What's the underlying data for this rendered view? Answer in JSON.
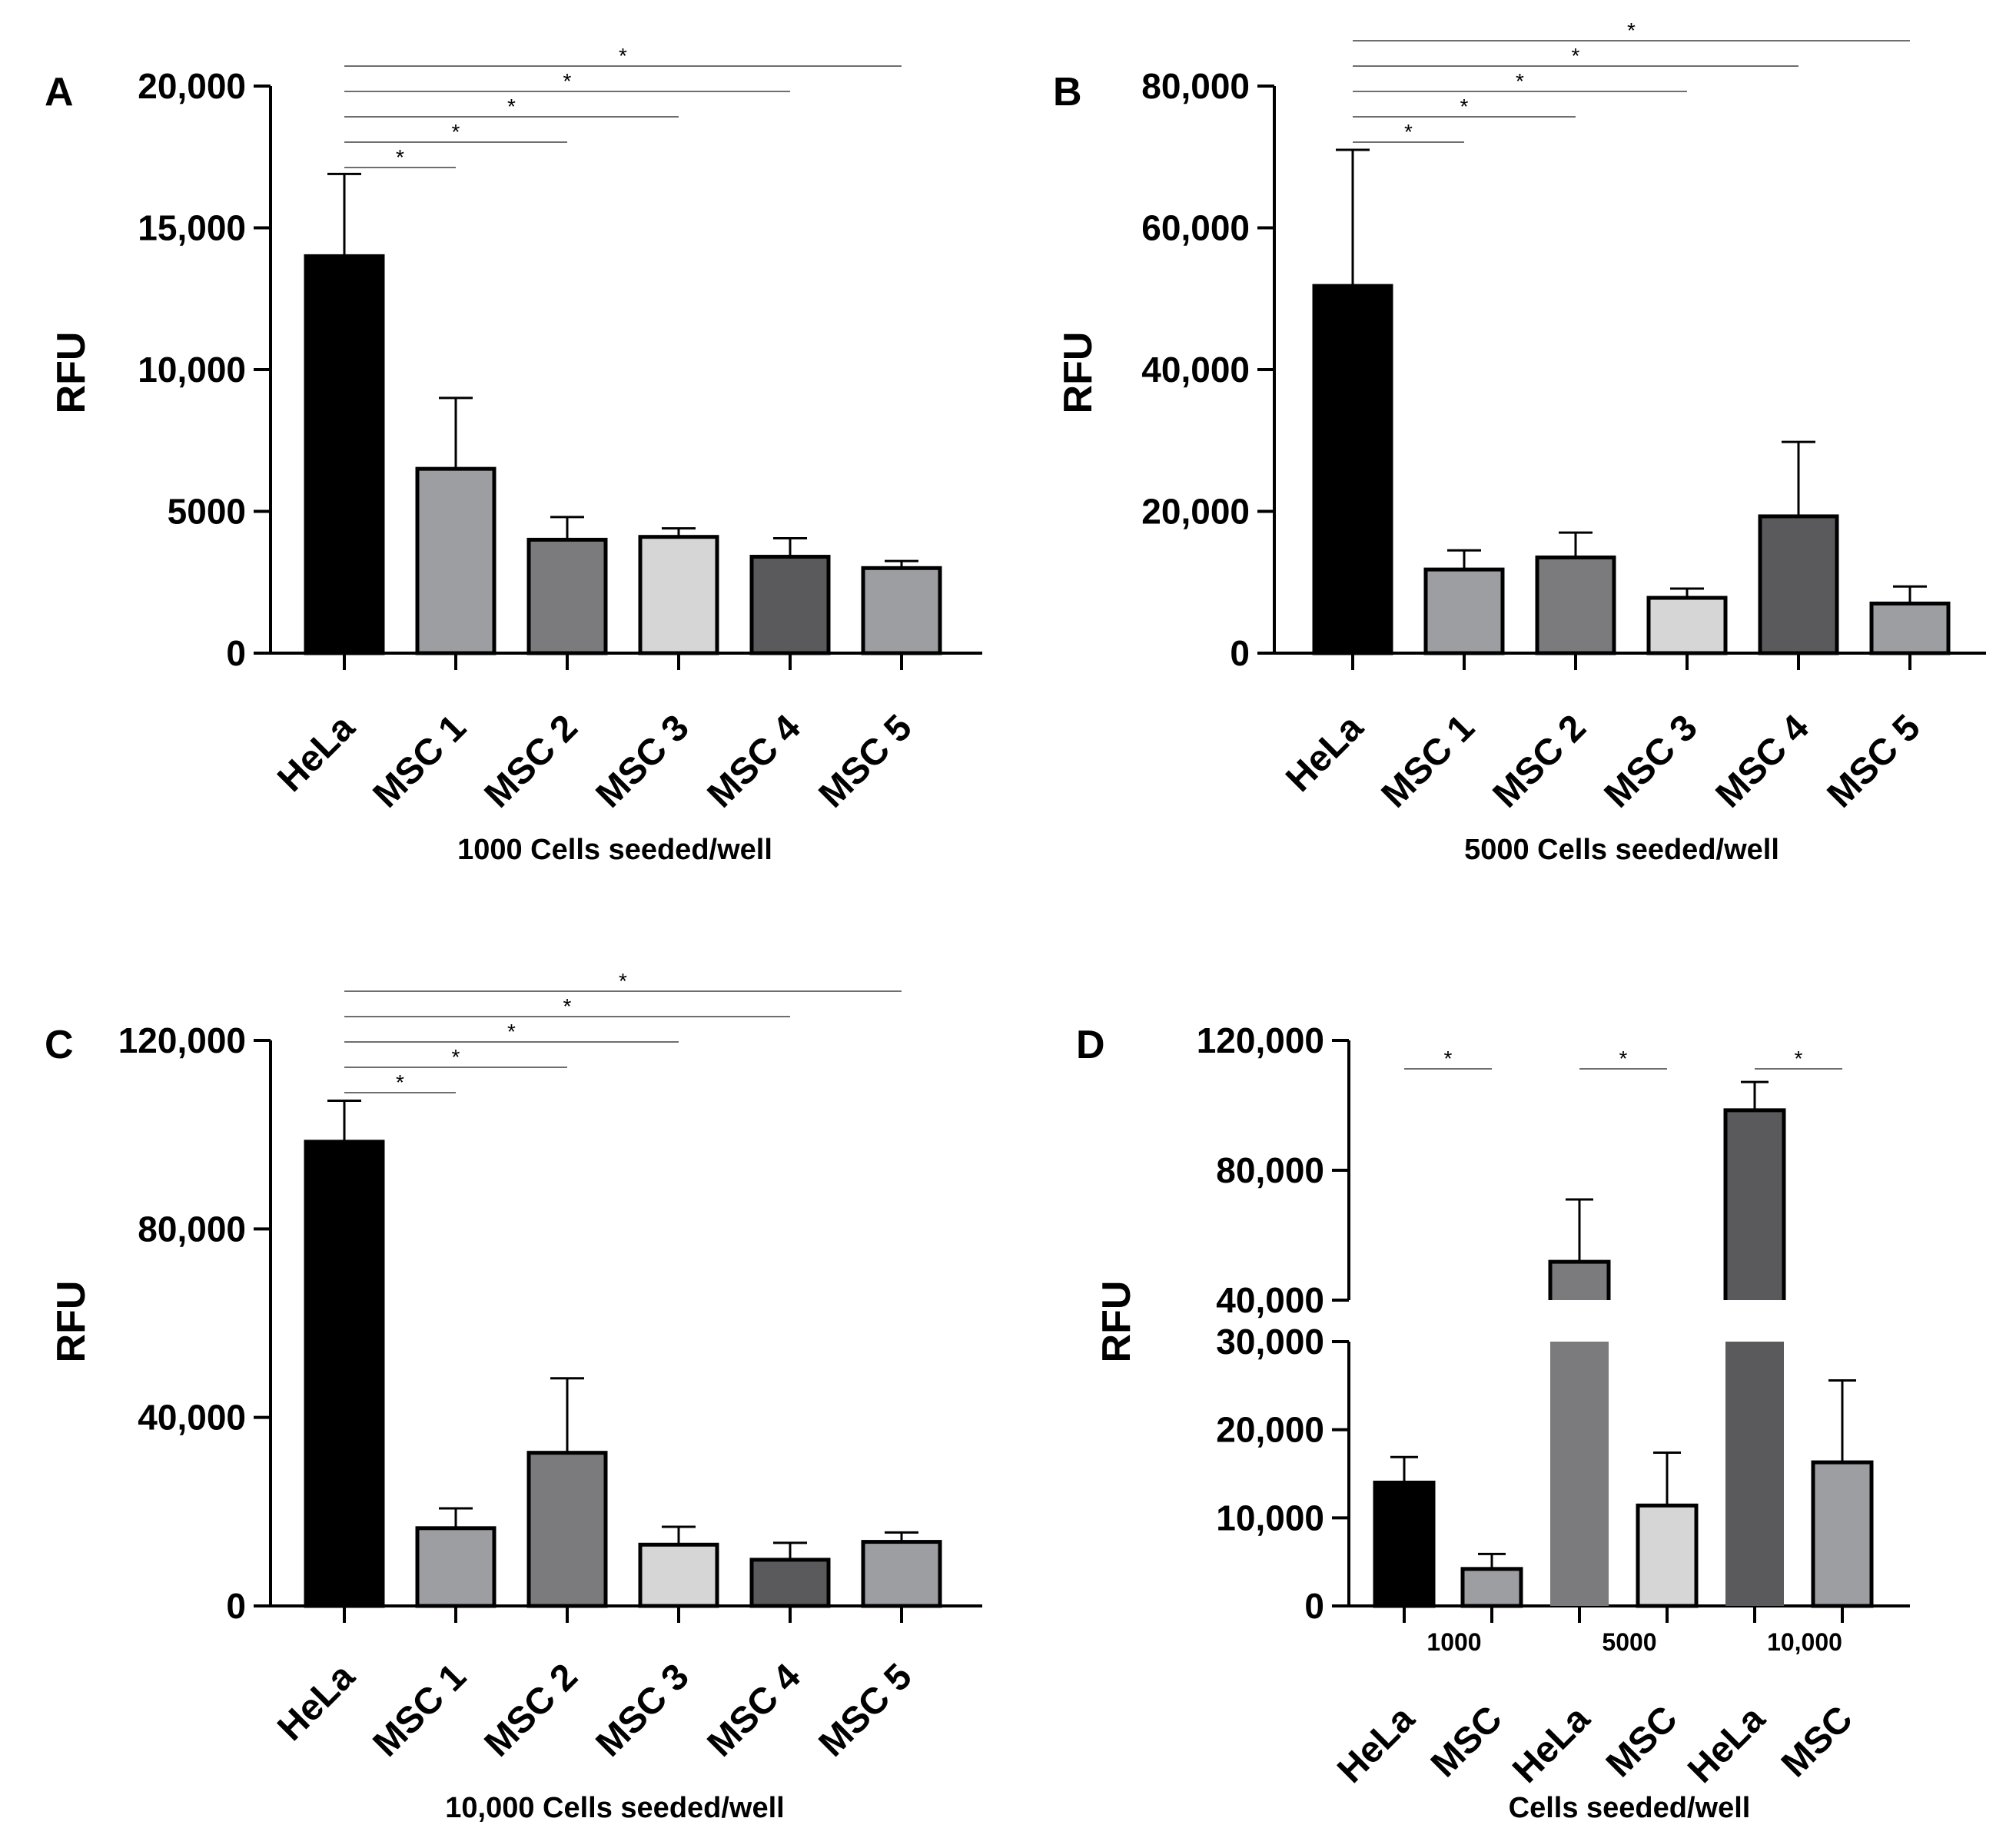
{
  "colors": {
    "HeLa": "#000000",
    "MSC 1": "#9d9ea2",
    "MSC 2": "#7b7b7d",
    "MSC 3": "#d6d6d6",
    "MSC 4": "#5a5a5c",
    "MSC 5": "#9d9ea2",
    "axis": "#000000",
    "sig_line": "#6e6e6e"
  },
  "chart_data": [
    {
      "panel": "A",
      "type": "bar",
      "title": "",
      "ylabel": "RFU",
      "xlabel": "1000 Cells seeded/well",
      "categories": [
        "HeLa",
        "MSC 1",
        "MSC 2",
        "MSC 3",
        "MSC 4",
        "MSC 5"
      ],
      "values": [
        14000,
        6500,
        4000,
        4100,
        3400,
        3000
      ],
      "errors": [
        2900,
        2500,
        800,
        300,
        650,
        250
      ],
      "ylim": [
        0,
        20000
      ],
      "yticks": [
        0,
        5000,
        10000,
        15000,
        20000
      ],
      "ytick_labels": [
        "0",
        "5000",
        "10,000",
        "15,000",
        "20,000"
      ],
      "significance": [
        {
          "from": "HeLa",
          "to": "MSC 1",
          "label": "*"
        },
        {
          "from": "HeLa",
          "to": "MSC 2",
          "label": "*"
        },
        {
          "from": "HeLa",
          "to": "MSC 3",
          "label": "*"
        },
        {
          "from": "HeLa",
          "to": "MSC 4",
          "label": "*"
        },
        {
          "from": "HeLa",
          "to": "MSC 5",
          "label": "*"
        }
      ]
    },
    {
      "panel": "B",
      "type": "bar",
      "title": "",
      "ylabel": "RFU",
      "xlabel": "5000 Cells seeded/well",
      "categories": [
        "HeLa",
        "MSC 1",
        "MSC 2",
        "MSC 3",
        "MSC 4",
        "MSC 5"
      ],
      "values": [
        51800,
        11800,
        13500,
        7800,
        19300,
        7000
      ],
      "errors": [
        19200,
        2700,
        3500,
        1300,
        10500,
        2400
      ],
      "ylim": [
        0,
        80000
      ],
      "yticks": [
        0,
        20000,
        40000,
        60000,
        80000
      ],
      "ytick_labels": [
        "0",
        "20,000",
        "40,000",
        "60,000",
        "80,000"
      ],
      "significance": [
        {
          "from": "HeLa",
          "to": "MSC 1",
          "label": "*"
        },
        {
          "from": "HeLa",
          "to": "MSC 2",
          "label": "*"
        },
        {
          "from": "HeLa",
          "to": "MSC 3",
          "label": "*"
        },
        {
          "from": "HeLa",
          "to": "MSC 4",
          "label": "*"
        },
        {
          "from": "HeLa",
          "to": "MSC 5",
          "label": "*"
        }
      ]
    },
    {
      "panel": "C",
      "type": "bar",
      "title": "",
      "ylabel": "RFU",
      "xlabel": "10,000 Cells seeded/well",
      "categories": [
        "HeLa",
        "MSC 1",
        "MSC 2",
        "MSC 3",
        "MSC 4",
        "MSC 5"
      ],
      "values": [
        98500,
        16500,
        32500,
        13000,
        9800,
        13600
      ],
      "errors": [
        8700,
        4200,
        15800,
        3800,
        3600,
        2000
      ],
      "ylim": [
        0,
        120000
      ],
      "yticks": [
        0,
        40000,
        80000,
        120000
      ],
      "ytick_labels": [
        "0",
        "40,000",
        "80,000",
        "120,000"
      ],
      "significance": [
        {
          "from": "HeLa",
          "to": "MSC 1",
          "label": "*"
        },
        {
          "from": "HeLa",
          "to": "MSC 2",
          "label": "*"
        },
        {
          "from": "HeLa",
          "to": "MSC 3",
          "label": "*"
        },
        {
          "from": "HeLa",
          "to": "MSC 4",
          "label": "*"
        },
        {
          "from": "HeLa",
          "to": "MSC 5",
          "label": "*"
        }
      ]
    },
    {
      "panel": "D",
      "type": "bar",
      "title": "",
      "ylabel": "RFU",
      "xlabel": "Cells seeded/well",
      "axis_break": {
        "lower_range": [
          0,
          30000
        ],
        "upper_range": [
          40000,
          120000
        ]
      },
      "groups": [
        "1000",
        "5000",
        "10,000"
      ],
      "categories": [
        "HeLa",
        "MSC",
        "HeLa",
        "MSC",
        "HeLa",
        "MSC"
      ],
      "values": [
        14000,
        4200,
        51800,
        11400,
        98500,
        16300
      ],
      "errors": [
        2900,
        1700,
        19200,
        6000,
        8700,
        9300
      ],
      "bar_colors": [
        "#000000",
        "#9d9ea2",
        "#7b7b7d",
        "#d6d6d6",
        "#5a5a5c",
        "#9d9ea2"
      ],
      "yticks_lower": [
        0,
        10000,
        20000,
        30000
      ],
      "ytick_labels_lower": [
        "0",
        "10,000",
        "20,000",
        "30,000"
      ],
      "yticks_upper": [
        40000,
        80000,
        120000
      ],
      "ytick_labels_upper": [
        "40,000",
        "80,000",
        "120,000"
      ],
      "significance": [
        {
          "group": "1000",
          "label": "*"
        },
        {
          "group": "5000",
          "label": "*"
        },
        {
          "group": "10,000",
          "label": "*"
        }
      ]
    }
  ]
}
